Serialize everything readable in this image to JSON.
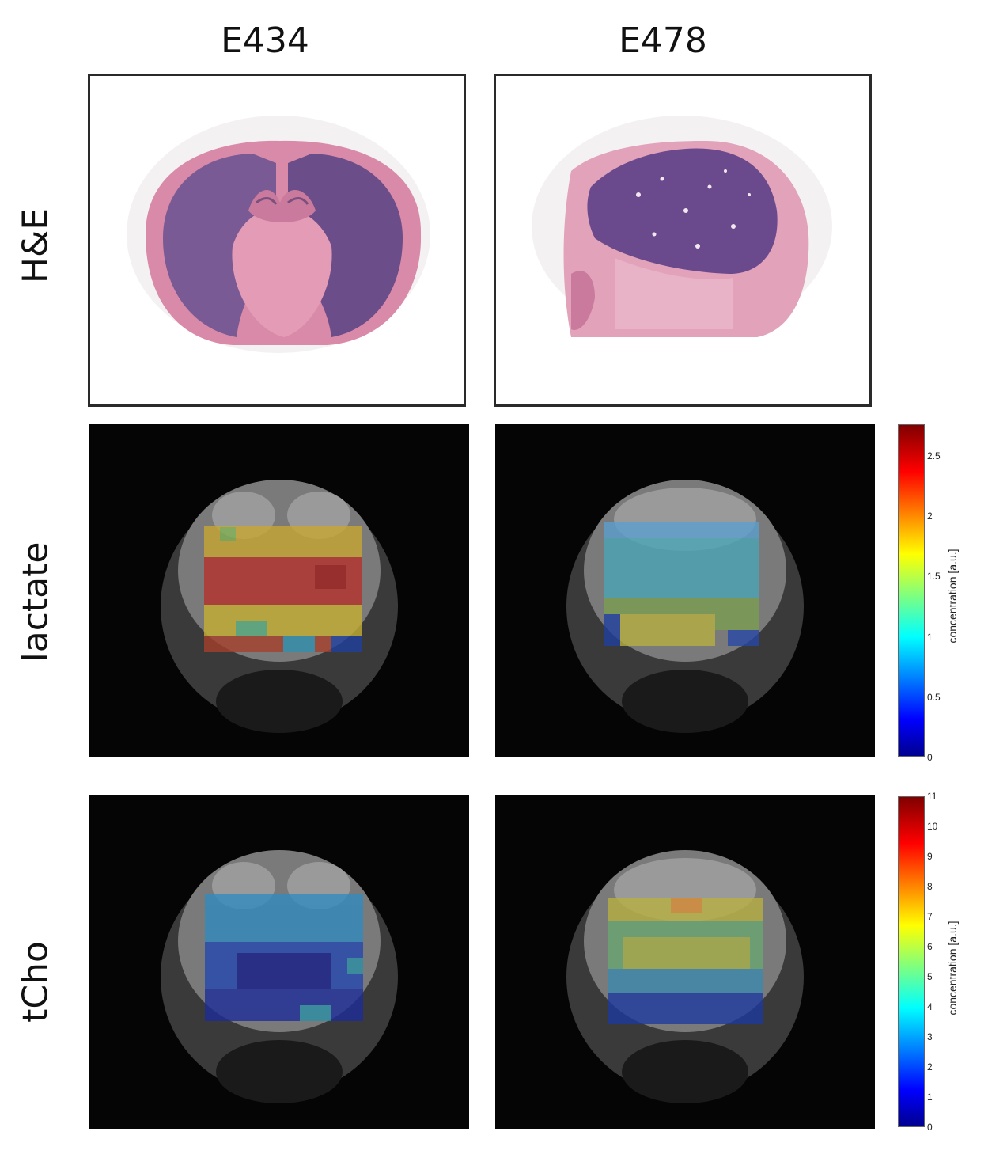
{
  "columns": {
    "left": "E434",
    "right": "E478"
  },
  "rows": {
    "he": "H&E",
    "lactate": "lactate",
    "tcho": "tCho"
  },
  "colorbars": {
    "lactate": {
      "label": "concentration [a.u.]",
      "ticks": [
        "2.5",
        "2",
        "1.5",
        "1",
        "0.5",
        "0"
      ],
      "range": [
        0,
        2.75
      ]
    },
    "tcho": {
      "label": "concentration [a.u.]",
      "ticks": [
        "11",
        "10",
        "9",
        "8",
        "7",
        "6",
        "5",
        "4",
        "3",
        "2",
        "1",
        "0"
      ],
      "range": [
        0,
        11
      ]
    }
  },
  "colormap": "jet",
  "colors": {
    "background": "#ffffff",
    "mri_background": "#050505",
    "he_pink": "#d98aa8",
    "he_purple": "#6b4d8a"
  }
}
